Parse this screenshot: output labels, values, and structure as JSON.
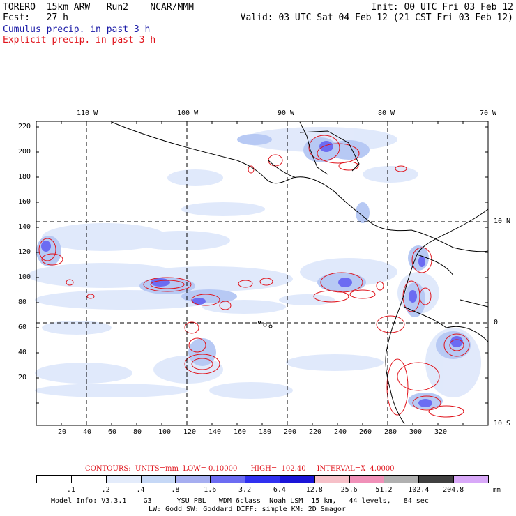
{
  "header": {
    "model": "TORERO  15km ARW   Run2    NCAR/MMM",
    "init": "Init: 00 UTC Fri 03 Feb 12",
    "fcst": "Fcst:   27 h",
    "valid": "Valid: 03 UTC Sat 04 Feb 12 (21 CST Fri 03 Feb 12)",
    "cumulus": "Cumulus precip. in past 3 h",
    "explicit": "Explicit precip. in past 3 h",
    "cumulus_color": "#1a1aa6",
    "explicit_color": "#e0141c"
  },
  "map": {
    "top_lon_labels": [
      "110 W",
      "100 W",
      "90 W",
      "80 W",
      "70 W"
    ],
    "left_y_labels": [
      "220",
      "200",
      "180",
      "160",
      "140",
      "120",
      "100",
      "80",
      "60",
      "40",
      "20"
    ],
    "bottom_x_labels": [
      "20",
      "40",
      "60",
      "80",
      "100",
      "120",
      "140",
      "160",
      "180",
      "200",
      "220",
      "240",
      "260",
      "280",
      "300",
      "320"
    ],
    "right_lat_labels": [
      "10 N",
      "0",
      "10 S"
    ],
    "grid_style": "dashed",
    "land_outline_color": "#000000"
  },
  "legend": {
    "contours_line": "CONTOURS:  UNITS=mm  LOW= 0.10000      HIGH=  102.40     INTERVAL=X  4.0000",
    "units": "mm",
    "thresholds": [
      ".1",
      ".2",
      ".4",
      ".8",
      "1.6",
      "3.2",
      "6.4",
      "12.8",
      "25.6",
      "51.2",
      "102.4",
      "204.8"
    ],
    "colors": [
      "#ffffff",
      "#ffffff",
      "#ffffff",
      "#e4ecfb",
      "#c6d8f6",
      "#a6aef0",
      "#6c6cf2",
      "#3030f0",
      "#1a14d8",
      "#f6c0c8",
      "#f090b8",
      "#b0b0b0",
      "#404040",
      "#d8a8f8"
    ]
  },
  "footer": {
    "line1": "Model Info: V3.3.1    G3      YSU PBL   WDM 6class  Noah LSM  15 km,   44 levels,   84 sec",
    "line2": "LW: Godd SW: Goddard DIFF: simple KM: 2D Smagor"
  }
}
